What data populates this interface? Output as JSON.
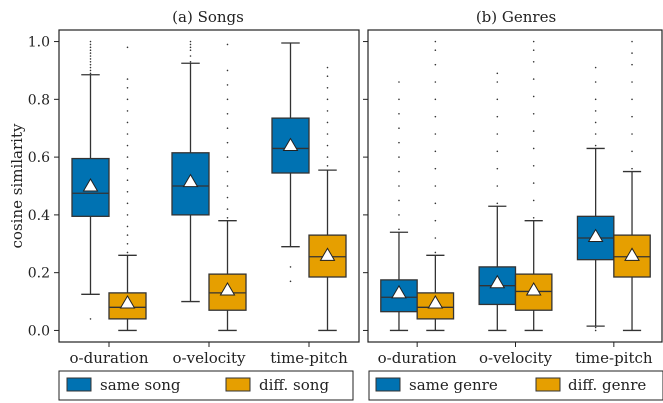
{
  "chart_data": [
    {
      "type": "box",
      "title": "(a) Songs",
      "ylabel": "cosine similarity",
      "ylim": [
        -0.04,
        1.04
      ],
      "yticks": [
        0.0,
        0.2,
        0.4,
        0.6,
        0.8,
        1.0
      ],
      "ytick_labels": [
        "0.0",
        "0.2",
        "0.4",
        "0.6",
        "0.8",
        "1.0"
      ],
      "categories": [
        "o-duration",
        "o-velocity",
        "time-pitch"
      ],
      "legend_position": "bottom",
      "series": [
        {
          "name": "same song",
          "color": "#0072b2",
          "boxes": [
            {
              "whislo": 0.125,
              "q1": 0.395,
              "med": 0.475,
              "q3": 0.595,
              "whishi": 0.885,
              "mean": 0.5,
              "fliers": [
                0.04,
                0.89,
                0.9,
                0.91,
                0.92,
                0.93,
                0.94,
                0.95,
                0.96,
                0.97,
                0.98,
                0.99,
                1.0
              ]
            },
            {
              "whislo": 0.1,
              "q1": 0.4,
              "med": 0.5,
              "q3": 0.615,
              "whishi": 0.925,
              "mean": 0.515,
              "fliers": [
                0.93,
                0.95,
                0.97,
                0.98,
                0.99,
                1.0
              ]
            },
            {
              "whislo": 0.29,
              "q1": 0.545,
              "med": 0.63,
              "q3": 0.735,
              "whishi": 0.995,
              "mean": 0.64,
              "fliers": [
                0.17,
                0.22
              ]
            }
          ]
        },
        {
          "name": "diff. song",
          "color": "#e69f00",
          "boxes": [
            {
              "whislo": 0.0,
              "q1": 0.04,
              "med": 0.08,
              "q3": 0.13,
              "whishi": 0.26,
              "mean": 0.095,
              "fliers": [
                0.27,
                0.3,
                0.33,
                0.36,
                0.4,
                0.44,
                0.48,
                0.52,
                0.56,
                0.6,
                0.64,
                0.68,
                0.72,
                0.76,
                0.8,
                0.84,
                0.87,
                0.98
              ]
            },
            {
              "whislo": 0.0,
              "q1": 0.07,
              "med": 0.13,
              "q3": 0.195,
              "whishi": 0.38,
              "mean": 0.14,
              "fliers": [
                0.39,
                0.42,
                0.46,
                0.5,
                0.55,
                0.6,
                0.65,
                0.7,
                0.75,
                0.8,
                0.85,
                0.9,
                0.99
              ]
            },
            {
              "whislo": 0.0,
              "q1": 0.185,
              "med": 0.255,
              "q3": 0.33,
              "whishi": 0.555,
              "mean": 0.26,
              "fliers": [
                0.57,
                0.6,
                0.64,
                0.68,
                0.72,
                0.76,
                0.8,
                0.84,
                0.88,
                0.91
              ]
            }
          ]
        }
      ]
    },
    {
      "type": "box",
      "title": "(b) Genres",
      "ylim": [
        -0.04,
        1.04
      ],
      "categories": [
        "o-duration",
        "o-velocity",
        "time-pitch"
      ],
      "legend_position": "bottom",
      "series": [
        {
          "name": "same genre",
          "color": "#0072b2",
          "boxes": [
            {
              "whislo": 0.0,
              "q1": 0.065,
              "med": 0.115,
              "q3": 0.175,
              "whishi": 0.34,
              "mean": 0.13,
              "fliers": [
                0.35,
                0.4,
                0.45,
                0.5,
                0.55,
                0.6,
                0.65,
                0.7,
                0.75,
                0.8,
                0.86
              ]
            },
            {
              "whislo": 0.0,
              "q1": 0.09,
              "med": 0.155,
              "q3": 0.22,
              "whishi": 0.43,
              "mean": 0.165,
              "fliers": [
                0.44,
                0.5,
                0.56,
                0.62,
                0.68,
                0.74,
                0.8,
                0.86,
                0.89
              ]
            },
            {
              "whislo": 0.015,
              "q1": 0.245,
              "med": 0.32,
              "q3": 0.395,
              "whishi": 0.63,
              "mean": 0.325,
              "fliers": [
                0.0,
                0.01,
                0.64,
                0.68,
                0.72,
                0.76,
                0.8,
                0.86,
                0.91
              ]
            }
          ]
        },
        {
          "name": "diff. genre",
          "color": "#e69f00",
          "boxes": [
            {
              "whislo": 0.0,
              "q1": 0.04,
              "med": 0.08,
              "q3": 0.13,
              "whishi": 0.26,
              "mean": 0.095,
              "fliers": [
                0.27,
                0.32,
                0.38,
                0.44,
                0.5,
                0.56,
                0.62,
                0.68,
                0.74,
                0.8,
                0.86,
                0.92,
                0.97,
                1.0
              ]
            },
            {
              "whislo": 0.0,
              "q1": 0.07,
              "med": 0.135,
              "q3": 0.195,
              "whishi": 0.38,
              "mean": 0.14,
              "fliers": [
                0.39,
                0.45,
                0.51,
                0.57,
                0.63,
                0.69,
                0.75,
                0.81,
                0.87,
                0.93,
                0.97,
                1.0
              ]
            },
            {
              "whislo": 0.0,
              "q1": 0.185,
              "med": 0.255,
              "q3": 0.33,
              "whishi": 0.55,
              "mean": 0.26,
              "fliers": [
                0.56,
                0.62,
                0.68,
                0.74,
                0.8,
                0.86,
                0.92,
                0.96,
                1.0
              ]
            }
          ]
        }
      ]
    }
  ]
}
